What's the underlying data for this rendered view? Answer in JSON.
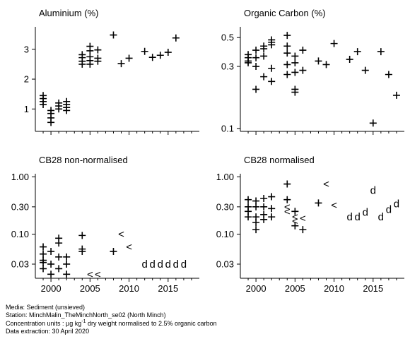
{
  "chart_data": [
    {
      "type": "scatter",
      "title": "Aluminium (%)",
      "xlim": [
        1998,
        2019
      ],
      "ylim": [
        0.25,
        3.8
      ],
      "y_scale": "linear",
      "yticks": [
        1,
        2,
        3
      ],
      "ytick_labels": [
        "1",
        "2",
        "3"
      ],
      "xticks": [
        2000,
        2005,
        2010,
        2015
      ],
      "xtick_labels": [],
      "points": [
        {
          "x": 1999,
          "y": 1.15,
          "m": "+"
        },
        {
          "x": 1999,
          "y": 1.25,
          "m": "+"
        },
        {
          "x": 1999,
          "y": 1.35,
          "m": "+"
        },
        {
          "x": 1999,
          "y": 1.45,
          "m": "+"
        },
        {
          "x": 2000,
          "y": 0.55,
          "m": "+"
        },
        {
          "x": 2000,
          "y": 0.7,
          "m": "+"
        },
        {
          "x": 2000,
          "y": 0.85,
          "m": "+"
        },
        {
          "x": 2000,
          "y": 0.95,
          "m": "+"
        },
        {
          "x": 2001,
          "y": 1.0,
          "m": "+"
        },
        {
          "x": 2001,
          "y": 1.1,
          "m": "+"
        },
        {
          "x": 2001,
          "y": 1.2,
          "m": "+"
        },
        {
          "x": 2002,
          "y": 0.95,
          "m": "+"
        },
        {
          "x": 2002,
          "y": 1.05,
          "m": "+"
        },
        {
          "x": 2002,
          "y": 1.15,
          "m": "+"
        },
        {
          "x": 2002,
          "y": 1.25,
          "m": "+"
        },
        {
          "x": 2004,
          "y": 2.5,
          "m": "+"
        },
        {
          "x": 2004,
          "y": 2.6,
          "m": "+"
        },
        {
          "x": 2004,
          "y": 2.72,
          "m": "+"
        },
        {
          "x": 2004,
          "y": 2.82,
          "m": "+"
        },
        {
          "x": 2005,
          "y": 2.5,
          "m": "+"
        },
        {
          "x": 2005,
          "y": 2.62,
          "m": "+"
        },
        {
          "x": 2005,
          "y": 2.75,
          "m": "+"
        },
        {
          "x": 2005,
          "y": 2.95,
          "m": "+"
        },
        {
          "x": 2005,
          "y": 3.1,
          "m": "+"
        },
        {
          "x": 2006,
          "y": 2.6,
          "m": "+"
        },
        {
          "x": 2006,
          "y": 2.7,
          "m": "+"
        },
        {
          "x": 2006,
          "y": 2.98,
          "m": "+"
        },
        {
          "x": 2008,
          "y": 3.48,
          "m": "+"
        },
        {
          "x": 2009,
          "y": 2.52,
          "m": "+"
        },
        {
          "x": 2010,
          "y": 2.7,
          "m": "+"
        },
        {
          "x": 2012,
          "y": 2.93,
          "m": "+"
        },
        {
          "x": 2013,
          "y": 2.73,
          "m": "+"
        },
        {
          "x": 2014,
          "y": 2.8,
          "m": "+"
        },
        {
          "x": 2015,
          "y": 2.9,
          "m": "+"
        },
        {
          "x": 2016,
          "y": 3.38,
          "m": "+"
        }
      ]
    },
    {
      "type": "scatter",
      "title": "Organic Carbon (%)",
      "xlim": [
        1998,
        2019
      ],
      "ylim": [
        0.095,
        0.62
      ],
      "y_scale": "log",
      "yticks": [
        0.1,
        0.3,
        0.5
      ],
      "ytick_labels": [
        "0.1",
        "0.3",
        "0.5"
      ],
      "xticks": [
        2000,
        2005,
        2010,
        2015
      ],
      "xtick_labels": [],
      "points": [
        {
          "x": 1999,
          "y": 0.32,
          "m": "+"
        },
        {
          "x": 1999,
          "y": 0.33,
          "m": "+"
        },
        {
          "x": 1999,
          "y": 0.35,
          "m": "+"
        },
        {
          "x": 1999,
          "y": 0.37,
          "m": "+"
        },
        {
          "x": 2000,
          "y": 0.2,
          "m": "+"
        },
        {
          "x": 2000,
          "y": 0.3,
          "m": "+"
        },
        {
          "x": 2000,
          "y": 0.35,
          "m": "+"
        },
        {
          "x": 2000,
          "y": 0.4,
          "m": "+"
        },
        {
          "x": 2001,
          "y": 0.25,
          "m": "+"
        },
        {
          "x": 2001,
          "y": 0.36,
          "m": "+"
        },
        {
          "x": 2001,
          "y": 0.41,
          "m": "+"
        },
        {
          "x": 2001,
          "y": 0.43,
          "m": "+"
        },
        {
          "x": 2002,
          "y": 0.23,
          "m": "+"
        },
        {
          "x": 2002,
          "y": 0.29,
          "m": "+"
        },
        {
          "x": 2002,
          "y": 0.44,
          "m": "+"
        },
        {
          "x": 2002,
          "y": 0.46,
          "m": "+"
        },
        {
          "x": 2002,
          "y": 0.48,
          "m": "+"
        },
        {
          "x": 2004,
          "y": 0.26,
          "m": "+"
        },
        {
          "x": 2004,
          "y": 0.31,
          "m": "+"
        },
        {
          "x": 2004,
          "y": 0.38,
          "m": "+"
        },
        {
          "x": 2004,
          "y": 0.43,
          "m": "+"
        },
        {
          "x": 2004,
          "y": 0.52,
          "m": "+"
        },
        {
          "x": 2005,
          "y": 0.19,
          "m": "+"
        },
        {
          "x": 2005,
          "y": 0.2,
          "m": "+"
        },
        {
          "x": 2005,
          "y": 0.27,
          "m": "+"
        },
        {
          "x": 2005,
          "y": 0.32,
          "m": "+"
        },
        {
          "x": 2005,
          "y": 0.36,
          "m": "+"
        },
        {
          "x": 2006,
          "y": 0.28,
          "m": "+"
        },
        {
          "x": 2006,
          "y": 0.4,
          "m": "+"
        },
        {
          "x": 2008,
          "y": 0.33,
          "m": "+"
        },
        {
          "x": 2009,
          "y": 0.31,
          "m": "+"
        },
        {
          "x": 2010,
          "y": 0.45,
          "m": "+"
        },
        {
          "x": 2012,
          "y": 0.34,
          "m": "+"
        },
        {
          "x": 2013,
          "y": 0.39,
          "m": "+"
        },
        {
          "x": 2014,
          "y": 0.28,
          "m": "+"
        },
        {
          "x": 2015,
          "y": 0.11,
          "m": "+"
        },
        {
          "x": 2016,
          "y": 0.39,
          "m": "+"
        },
        {
          "x": 2017,
          "y": 0.26,
          "m": "+"
        },
        {
          "x": 2018,
          "y": 0.18,
          "m": "+"
        }
      ]
    },
    {
      "type": "scatter",
      "title": "CB28 non-normalised",
      "xlim": [
        1998,
        2019
      ],
      "ylim": [
        0.017,
        1.2
      ],
      "y_scale": "log",
      "yticks": [
        0.03,
        0.1,
        0.3,
        1.0
      ],
      "ytick_labels": [
        "0.03",
        "0.10",
        "0.30",
        "1.00"
      ],
      "xticks": [
        2000,
        2005,
        2010,
        2015
      ],
      "xtick_labels": [
        "2000",
        "2005",
        "2010",
        "2015"
      ],
      "points": [
        {
          "x": 1999,
          "y": 0.06,
          "m": "+"
        },
        {
          "x": 1999,
          "y": 0.045,
          "m": "+"
        },
        {
          "x": 1999,
          "y": 0.035,
          "m": "+"
        },
        {
          "x": 1999,
          "y": 0.032,
          "m": "+"
        },
        {
          "x": 1999,
          "y": 0.025,
          "m": "+"
        },
        {
          "x": 2000,
          "y": 0.05,
          "m": "+"
        },
        {
          "x": 2000,
          "y": 0.03,
          "m": "+"
        },
        {
          "x": 2000,
          "y": 0.02,
          "m": "+"
        },
        {
          "x": 2001,
          "y": 0.085,
          "m": "+"
        },
        {
          "x": 2001,
          "y": 0.07,
          "m": "+"
        },
        {
          "x": 2001,
          "y": 0.04,
          "m": "+"
        },
        {
          "x": 2001,
          "y": 0.025,
          "m": "+"
        },
        {
          "x": 2002,
          "y": 0.04,
          "m": "+"
        },
        {
          "x": 2002,
          "y": 0.03,
          "m": "+"
        },
        {
          "x": 2002,
          "y": 0.02,
          "m": "+"
        },
        {
          "x": 2004,
          "y": 0.095,
          "m": "+"
        },
        {
          "x": 2004,
          "y": 0.055,
          "m": "+"
        },
        {
          "x": 2004,
          "y": 0.05,
          "m": "+"
        },
        {
          "x": 2005,
          "y": 0.02,
          "m": "<"
        },
        {
          "x": 2006,
          "y": 0.02,
          "m": "<"
        },
        {
          "x": 2008,
          "y": 0.05,
          "m": "+"
        },
        {
          "x": 2009,
          "y": 0.1,
          "m": "<"
        },
        {
          "x": 2010,
          "y": 0.06,
          "m": "<"
        },
        {
          "x": 2012,
          "y": 0.03,
          "m": "d"
        },
        {
          "x": 2013,
          "y": 0.03,
          "m": "d"
        },
        {
          "x": 2014,
          "y": 0.03,
          "m": "d"
        },
        {
          "x": 2015,
          "y": 0.03,
          "m": "d"
        },
        {
          "x": 2016,
          "y": 0.03,
          "m": "d"
        },
        {
          "x": 2017,
          "y": 0.03,
          "m": "d"
        }
      ]
    },
    {
      "type": "scatter",
      "title": "CB28 normalised",
      "xlim": [
        1998,
        2019
      ],
      "ylim": [
        0.017,
        1.2
      ],
      "y_scale": "log",
      "yticks": [
        0.03,
        0.1,
        0.3,
        1.0
      ],
      "ytick_labels": [
        "0.03",
        "0.10",
        "0.30",
        "1.00"
      ],
      "xticks": [
        2000,
        2005,
        2010,
        2015
      ],
      "xtick_labels": [
        "2000",
        "2005",
        "2010",
        "2015"
      ],
      "points": [
        {
          "x": 1999,
          "y": 0.4,
          "m": "+"
        },
        {
          "x": 1999,
          "y": 0.3,
          "m": "+"
        },
        {
          "x": 1999,
          "y": 0.25,
          "m": "+"
        },
        {
          "x": 1999,
          "y": 0.2,
          "m": "+"
        },
        {
          "x": 2000,
          "y": 0.38,
          "m": "+"
        },
        {
          "x": 2000,
          "y": 0.3,
          "m": "+"
        },
        {
          "x": 2000,
          "y": 0.2,
          "m": "+"
        },
        {
          "x": 2000,
          "y": 0.16,
          "m": "+"
        },
        {
          "x": 2000,
          "y": 0.12,
          "m": "+"
        },
        {
          "x": 2001,
          "y": 0.42,
          "m": "+"
        },
        {
          "x": 2001,
          "y": 0.3,
          "m": "+"
        },
        {
          "x": 2001,
          "y": 0.22,
          "m": "+"
        },
        {
          "x": 2001,
          "y": 0.18,
          "m": "+"
        },
        {
          "x": 2002,
          "y": 0.45,
          "m": "+"
        },
        {
          "x": 2002,
          "y": 0.28,
          "m": "+"
        },
        {
          "x": 2002,
          "y": 0.2,
          "m": "+"
        },
        {
          "x": 2004,
          "y": 0.75,
          "m": "+"
        },
        {
          "x": 2004,
          "y": 0.4,
          "m": "+"
        },
        {
          "x": 2004,
          "y": 0.3,
          "m": "<"
        },
        {
          "x": 2004,
          "y": 0.25,
          "m": "<"
        },
        {
          "x": 2005,
          "y": 0.25,
          "m": "+"
        },
        {
          "x": 2005,
          "y": 0.2,
          "m": "<"
        },
        {
          "x": 2005,
          "y": 0.17,
          "m": "<"
        },
        {
          "x": 2005,
          "y": 0.14,
          "m": "+"
        },
        {
          "x": 2006,
          "y": 0.19,
          "m": "<"
        },
        {
          "x": 2006,
          "y": 0.12,
          "m": "+"
        },
        {
          "x": 2008,
          "y": 0.35,
          "m": "+"
        },
        {
          "x": 2009,
          "y": 0.75,
          "m": "<"
        },
        {
          "x": 2010,
          "y": 0.32,
          "m": "<"
        },
        {
          "x": 2012,
          "y": 0.2,
          "m": "d"
        },
        {
          "x": 2013,
          "y": 0.2,
          "m": "d"
        },
        {
          "x": 2014,
          "y": 0.24,
          "m": "d"
        },
        {
          "x": 2015,
          "y": 0.58,
          "m": "d"
        },
        {
          "x": 2016,
          "y": 0.2,
          "m": "d"
        },
        {
          "x": 2017,
          "y": 0.27,
          "m": "d"
        },
        {
          "x": 2018,
          "y": 0.34,
          "m": "d"
        }
      ]
    }
  ],
  "footer": {
    "media": "Media: Sediment (unsieved)",
    "station": "Station: MinchMalin_TheMinchNorth_se02 (North Minch)",
    "units_prefix": "Concentration units : µg kg",
    "units_sup": "-1",
    "units_suffix": " dry weight normalised to 2.5% organic carbon",
    "extraction": "Data extraction: 30 April 2020"
  }
}
